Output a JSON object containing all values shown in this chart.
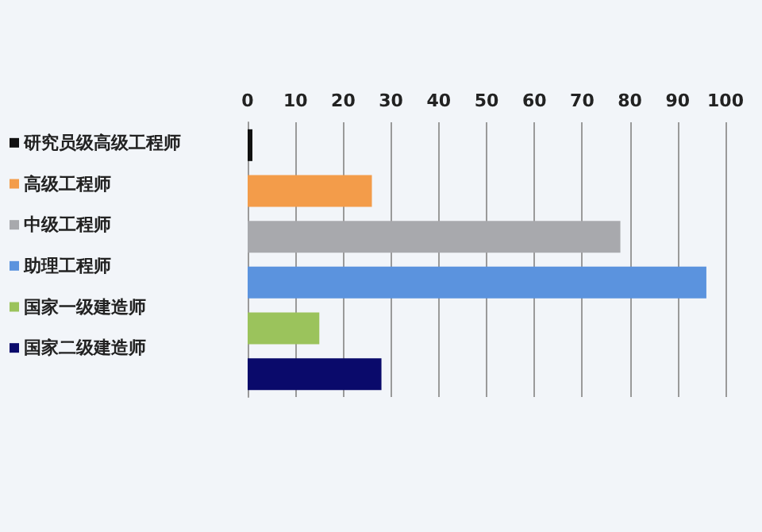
{
  "chart_data": {
    "type": "bar",
    "orientation": "horizontal",
    "stacked": true,
    "categories": [
      null,
      null,
      null,
      null,
      null,
      null
    ],
    "series": [
      {
        "name": "研究员级高级工程师",
        "color": "#111111",
        "values": [
          1,
          null,
          null,
          null,
          null,
          null
        ]
      },
      {
        "name": "高级工程师",
        "color": "#f39c4a",
        "values": [
          null,
          26,
          null,
          null,
          null,
          null
        ]
      },
      {
        "name": "中级工程师",
        "color": "#a8a9ad",
        "values": [
          null,
          null,
          78,
          null,
          null,
          null
        ]
      },
      {
        "name": "助理工程师",
        "color": "#5b93de",
        "values": [
          null,
          null,
          null,
          96,
          null,
          null
        ]
      },
      {
        "name": "国家一级建造师",
        "color": "#9bc35c",
        "values": [
          null,
          null,
          null,
          null,
          15,
          null
        ]
      },
      {
        "name": "国家二级建造师",
        "color": "#0a0a6b",
        "values": [
          null,
          null,
          null,
          null,
          null,
          28
        ]
      }
    ],
    "xlim": [
      0,
      100
    ],
    "xticks": [
      0,
      10,
      20,
      30,
      40,
      50,
      60,
      70,
      80,
      90,
      100
    ],
    "grid": "x",
    "legend": "left"
  }
}
